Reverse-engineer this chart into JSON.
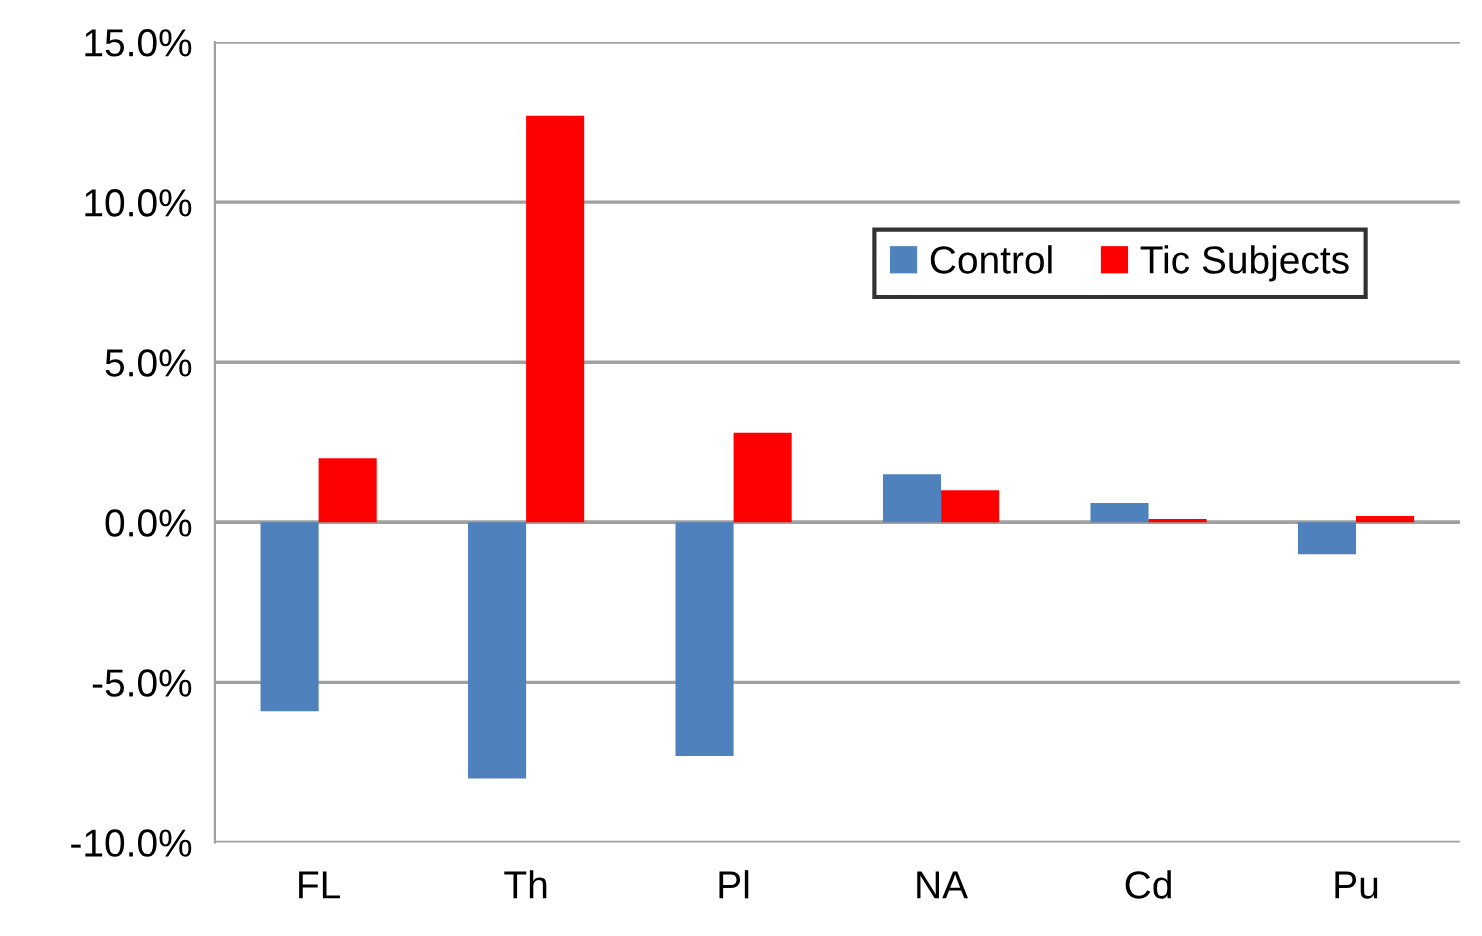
{
  "chart_data": {
    "type": "bar",
    "categories": [
      "FL",
      "Th",
      "Pl",
      "NA",
      "Cd",
      "Pu"
    ],
    "series": [
      {
        "name": "Control",
        "color": "#4f81bd",
        "values": [
          -5.9,
          -8.0,
          -7.3,
          1.5,
          0.6,
          -1.0
        ]
      },
      {
        "name": "Tic Subjects",
        "color": "#ff0000",
        "values": [
          2.0,
          12.7,
          2.8,
          1.0,
          0.1,
          0.2
        ]
      }
    ],
    "ylim": [
      -10,
      15
    ],
    "yticks": [
      {
        "value": -10,
        "label": "-10.0%"
      },
      {
        "value": -5,
        "label": "-5.0%"
      },
      {
        "value": 0,
        "label": "0.0%"
      },
      {
        "value": 5,
        "label": "5.0%"
      },
      {
        "value": 10,
        "label": "10.0%"
      },
      {
        "value": 15,
        "label": "15.0%"
      }
    ],
    "grid": "y",
    "legend": "top right"
  }
}
